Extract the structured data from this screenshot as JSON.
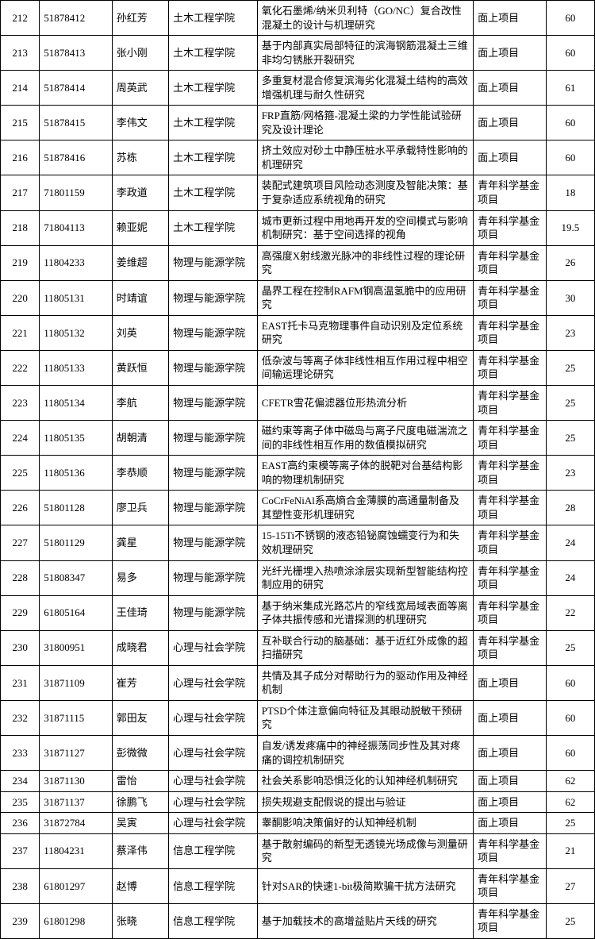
{
  "table": {
    "columns": [
      {
        "class": "c0"
      },
      {
        "class": "c1"
      },
      {
        "class": "c2"
      },
      {
        "class": "c3"
      },
      {
        "class": "c4"
      },
      {
        "class": "c5"
      },
      {
        "class": "c6"
      }
    ],
    "rows": [
      [
        "212",
        "51878412",
        "孙红芳",
        "土木工程学院",
        "氧化石墨烯/纳米贝利特（GO/NC）复合改性混凝土的设计与机理研究",
        "面上项目",
        "60"
      ],
      [
        "213",
        "51878413",
        "张小刚",
        "土木工程学院",
        "基于内部真实局部特征的滨海钢筋混凝土三维非均匀锈胀开裂研究",
        "面上项目",
        "60"
      ],
      [
        "214",
        "51878414",
        "周英武",
        "土木工程学院",
        "多重复材混合修复滨海劣化混凝土结构的高效增强机理与耐久性研究",
        "面上项目",
        "61"
      ],
      [
        "215",
        "51878415",
        "李伟文",
        "土木工程学院",
        "FRP直筋/网格箍-混凝土梁的力学性能试验研究及设计理论",
        "面上项目",
        "60"
      ],
      [
        "216",
        "51878416",
        "苏栋",
        "土木工程学院",
        "挤土效应对砂土中静压桩水平承载特性影响的机理研究",
        "面上项目",
        "60"
      ],
      [
        "217",
        "71801159",
        "李政道",
        "土木工程学院",
        "装配式建筑项目风险动态测度及智能决策：基于复杂适应系统视角的研究",
        "青年科学基金项目",
        "18"
      ],
      [
        "218",
        "71804113",
        "赖亚妮",
        "土木工程学院",
        "城市更新过程中用地再开发的空间模式与影响机制研究：基于空间选择的视角",
        "青年科学基金项目",
        "19.5"
      ],
      [
        "219",
        "11804233",
        "姜维超",
        "物理与能源学院",
        "高强度X射线激光脉冲的非线性过程的理论研究",
        "青年科学基金项目",
        "26"
      ],
      [
        "220",
        "11805131",
        "时靖谊",
        "物理与能源学院",
        "晶界工程在控制RAFM钢高温氢脆中的应用研究",
        "青年科学基金项目",
        "30"
      ],
      [
        "221",
        "11805132",
        "刘英",
        "物理与能源学院",
        "EAST托卡马克物理事件自动识别及定位系统研究",
        "青年科学基金项目",
        "23"
      ],
      [
        "222",
        "11805133",
        "黄跃恒",
        "物理与能源学院",
        "低杂波与等离子体非线性相互作用过程中相空间输运理论研究",
        "青年科学基金项目",
        "25"
      ],
      [
        "223",
        "11805134",
        "李航",
        "物理与能源学院",
        "CFETR雪花偏滤器位形热流分析",
        "青年科学基金项目",
        "25"
      ],
      [
        "224",
        "11805135",
        "胡朝清",
        "物理与能源学院",
        "磁约束等离子体中磁岛与离子尺度电磁湍流之间的非线性相互作用的数值模拟研究",
        "青年科学基金项目",
        "25"
      ],
      [
        "225",
        "11805136",
        "李恭顺",
        "物理与能源学院",
        "EAST高约束模等离子体的脱靶对台基结构影响的物理机制研究",
        "青年科学基金项目",
        "23"
      ],
      [
        "226",
        "51801128",
        "廖卫兵",
        "物理与能源学院",
        "CoCrFeNiAl系高熵合金薄膜的高通量制备及其塑性变形机理研究",
        "青年科学基金项目",
        "28"
      ],
      [
        "227",
        "51801129",
        "龚星",
        "物理与能源学院",
        "15-15Ti不锈钢的液态铅铋腐蚀蠕变行为和失效机理研究",
        "青年科学基金项目",
        "24"
      ],
      [
        "228",
        "51808347",
        "易多",
        "物理与能源学院",
        "光纤光栅埋入热喷涂涂层实现新型智能结构控制应用的研究",
        "青年科学基金项目",
        "24"
      ],
      [
        "229",
        "61805164",
        "王佳琦",
        "物理与能源学院",
        "基于纳米集成光路芯片的窄线宽局域表面等离子体共振传感和光谱探测的机理研究",
        "青年科学基金项目",
        "22"
      ],
      [
        "230",
        "31800951",
        "成晓君",
        "心理与社会学院",
        "互补联合行动的脑基础：基于近红外成像的超扫描研究",
        "青年科学基金项目",
        "25"
      ],
      [
        "231",
        "31871109",
        "崔芳",
        "心理与社会学院",
        "共情及其子成分对帮助行为的驱动作用及神经机制",
        "面上项目",
        "60"
      ],
      [
        "232",
        "31871115",
        "郭田友",
        "心理与社会学院",
        "PTSD个体注意偏向特征及其眼动脱敏干预研究",
        "面上项目",
        "60"
      ],
      [
        "233",
        "31871127",
        "彭微微",
        "心理与社会学院",
        "自发/诱发疼痛中的神经振荡同步性及其对疼痛的调控机制研究",
        "面上项目",
        "60"
      ],
      [
        "234",
        "31871130",
        "雷怡",
        "心理与社会学院",
        "社会关系影响恐惧泛化的认知神经机制研究",
        "面上项目",
        "62"
      ],
      [
        "235",
        "31871137",
        "徐鹏飞",
        "心理与社会学院",
        "损失规避支配假说的提出与验证",
        "面上项目",
        "62"
      ],
      [
        "236",
        "31872784",
        "吴寅",
        "心理与社会学院",
        "睾酮影响决策偏好的认知神经机制",
        "面上项目",
        "25"
      ],
      [
        "237",
        "11804231",
        "蔡泽伟",
        "信息工程学院",
        "基于散射编码的新型无透镜光场成像与测量研究",
        "青年科学基金项目",
        "21"
      ],
      [
        "238",
        "61801297",
        "赵博",
        "信息工程学院",
        "针对SAR的快速1-bit极简欺骗干扰方法研究",
        "青年科学基金项目",
        "27"
      ],
      [
        "239",
        "61801298",
        "张晓",
        "信息工程学院",
        "基于加载技术的高增益贴片天线的研究",
        "青年科学基金项目",
        "25"
      ]
    ],
    "border_color": "#000000",
    "background_color": "#ffffff",
    "font_size": 13,
    "cell_text_color": "#000000"
  }
}
